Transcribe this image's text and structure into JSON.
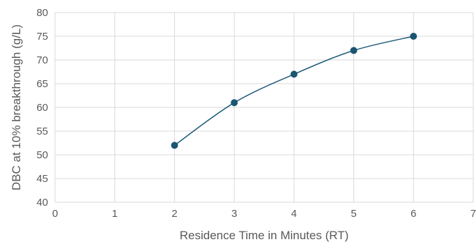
{
  "chart_data": {
    "type": "scatter",
    "title": "",
    "xlabel": "Residence Time in Minutes (RT)",
    "ylabel": "DBC at 10% breakthrough (g/L)",
    "xlim": [
      0,
      7
    ],
    "ylim": [
      40,
      80
    ],
    "xticks": [
      0,
      1,
      2,
      3,
      4,
      5,
      6,
      7
    ],
    "yticks": [
      40,
      45,
      50,
      55,
      60,
      65,
      70,
      75,
      80
    ],
    "grid": true,
    "legend": "none",
    "series": [
      {
        "x": [
          2,
          3,
          4,
          5,
          6
        ],
        "y": [
          52,
          61,
          67,
          72,
          75
        ],
        "line": "smooth",
        "color": "#1f5b7a"
      }
    ]
  },
  "style": {
    "grid_color": "#d9d9d9",
    "marker_color": "#1a5572",
    "line_color": "#1f5b7a"
  }
}
